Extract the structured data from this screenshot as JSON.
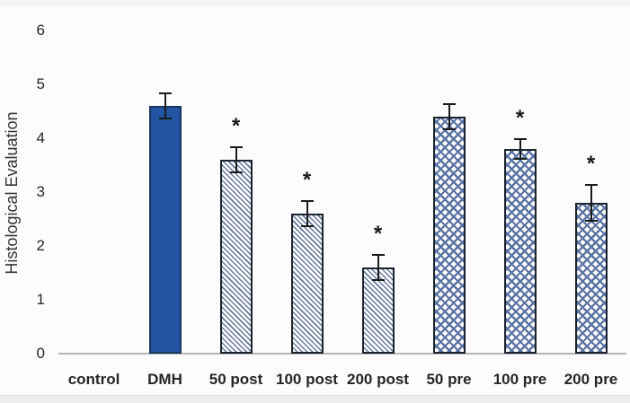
{
  "chart_data": {
    "type": "bar",
    "title": "",
    "xlabel": "",
    "ylabel": "Histological Evaluation",
    "ylim": [
      0,
      6
    ],
    "yticks": [
      0,
      1,
      2,
      3,
      4,
      5,
      6
    ],
    "grid": false,
    "legend_position": "none",
    "categories": [
      "control",
      "DMH",
      "50 post",
      "100 post",
      "200 post",
      "50 pre",
      "100 pre",
      "200 pre"
    ],
    "values": [
      0,
      4.6,
      3.6,
      2.6,
      1.6,
      4.4,
      3.8,
      2.8
    ],
    "error_bars": [
      0,
      0.25,
      0.25,
      0.25,
      0.25,
      0.25,
      0.2,
      0.35
    ],
    "significance": [
      "",
      "",
      "*",
      "*",
      "*",
      "",
      "*",
      "*"
    ],
    "patterns": [
      "none",
      "solid",
      "diagonal-hatch",
      "diagonal-hatch",
      "diagonal-hatch",
      "cross-hatch",
      "cross-hatch",
      "cross-hatch"
    ],
    "colors": {
      "solid_bar_fill": "#2154a3",
      "solid_bar_border": "#17375e",
      "diagonal_hatch_line": "#64799c",
      "cross_hatch_line": "#5b74a3",
      "hatched_bar_border": "#1c2430",
      "error_bar": "#1a1a1a",
      "axis_line": "#b5b5b5",
      "text": "#262626",
      "background": "#fcfcfc"
    }
  }
}
